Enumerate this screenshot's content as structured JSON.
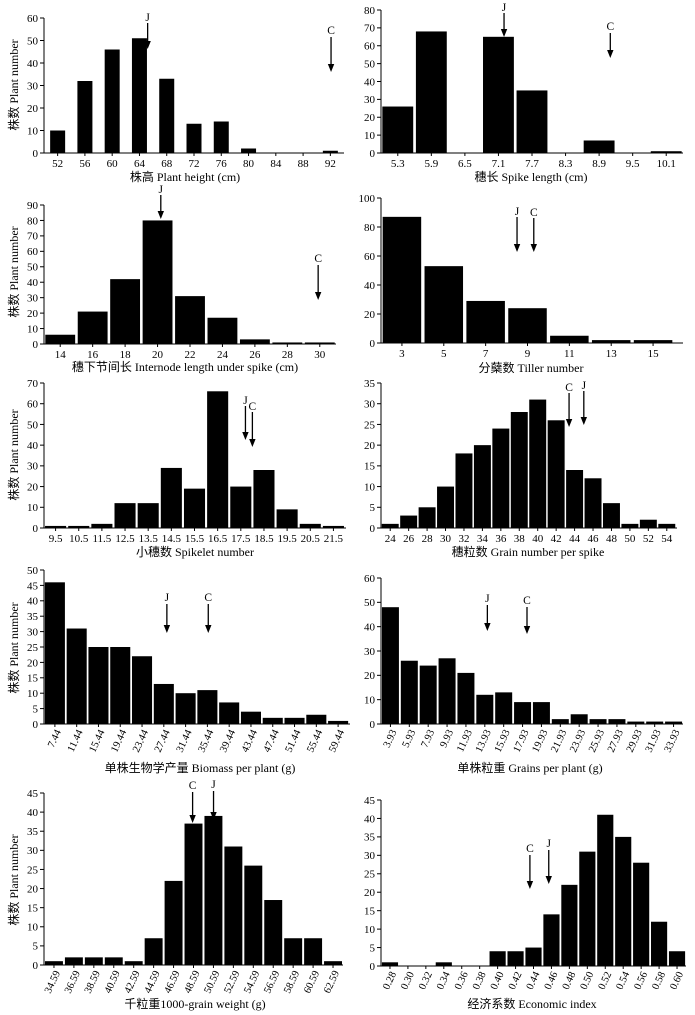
{
  "chart_data": [
    {
      "type": "bar",
      "xlabel": "株高 Plant height (cm)",
      "ylabel": "株数 Plant number",
      "categories": [
        "52",
        "56",
        "60",
        "64",
        "68",
        "72",
        "76",
        "80",
        "84",
        "88",
        "92"
      ],
      "values": [
        10,
        32,
        46,
        51,
        33,
        13,
        14,
        2,
        0,
        0,
        1
      ],
      "ylim": [
        0,
        60
      ],
      "yticks": [
        0,
        10,
        20,
        30,
        40,
        50,
        60
      ],
      "markers": [
        {
          "label": "J",
          "x": 65.2
        },
        {
          "label": "C",
          "x": 92.1
        }
      ]
    },
    {
      "type": "bar",
      "xlabel": "穗长 Spike length (cm)",
      "categories": [
        "5.3",
        "5.9",
        "6.5",
        "7.1",
        "7.7",
        "8.3",
        "8.9",
        "9.5",
        "10.1"
      ],
      "values": [
        26,
        68,
        0,
        65,
        35,
        0,
        7,
        0,
        1
      ],
      "ylim": [
        0,
        80
      ],
      "yticks": [
        0,
        10,
        20,
        30,
        40,
        50,
        60,
        70,
        80
      ],
      "markers": [
        {
          "label": "J",
          "x": 7.2
        },
        {
          "label": "C",
          "x": 9.1
        }
      ]
    },
    {
      "type": "bar",
      "xlabel": "穗下节间长 Internode length under spike (cm)",
      "ylabel": "株数 Plant number",
      "categories": [
        "14",
        "16",
        "18",
        "20",
        "22",
        "24",
        "26",
        "28",
        "30"
      ],
      "values": [
        6,
        21,
        42,
        80,
        31,
        17,
        3,
        1,
        1
      ],
      "ylim": [
        0,
        90
      ],
      "yticks": [
        0,
        10,
        20,
        30,
        40,
        50,
        60,
        70,
        80,
        90
      ],
      "markers": [
        {
          "label": "J",
          "x": 20.2
        },
        {
          "label": "C",
          "x": 29.9
        }
      ]
    },
    {
      "type": "bar",
      "xlabel": "分蘖数 Tiller number",
      "categories": [
        "3",
        "5",
        "7",
        "9",
        "11",
        "13",
        "15"
      ],
      "values": [
        87,
        53,
        29,
        24,
        5,
        2,
        2
      ],
      "ylim": [
        0,
        100
      ],
      "yticks": [
        0,
        20,
        40,
        60,
        80,
        100
      ],
      "markers": [
        {
          "label": "J",
          "x": 8.5
        },
        {
          "label": "C",
          "x": 9.3
        }
      ]
    },
    {
      "type": "bar",
      "xlabel": "小穗数 Spikelet number",
      "ylabel": "株数 Plant number",
      "categories": [
        "9.5",
        "10.5",
        "11.5",
        "12.5",
        "13.5",
        "14.5",
        "15.5",
        "16.5",
        "17.5",
        "18.5",
        "19.5",
        "20.5",
        "21.5"
      ],
      "values": [
        1,
        1,
        2,
        12,
        12,
        29,
        19,
        66,
        20,
        28,
        9,
        2,
        1
      ],
      "ylim": [
        0,
        70
      ],
      "yticks": [
        0,
        10,
        20,
        30,
        40,
        50,
        60,
        70
      ],
      "markers": [
        {
          "label": "J",
          "x": 17.7
        },
        {
          "label": "C",
          "x": 18.0
        }
      ]
    },
    {
      "type": "bar",
      "xlabel": "穗粒数 Grain number per spike",
      "categories": [
        "24",
        "26",
        "28",
        "30",
        "32",
        "34",
        "36",
        "38",
        "40",
        "42",
        "44",
        "46",
        "48",
        "50",
        "52",
        "54"
      ],
      "values": [
        1,
        3,
        5,
        10,
        18,
        20,
        24,
        28,
        31,
        26,
        14,
        12,
        6,
        1,
        2,
        1
      ],
      "ylim": [
        0,
        35
      ],
      "yticks": [
        0,
        5,
        10,
        15,
        20,
        25,
        30,
        35
      ],
      "markers": [
        {
          "label": "C",
          "x": 43.4
        },
        {
          "label": "J",
          "x": 45.0
        }
      ]
    },
    {
      "type": "bar",
      "xlabel": "单株生物学产量 Biomass per plant (g)",
      "ylabel": "株数 Plant number",
      "categories": [
        "7.44",
        "11.44",
        "15.44",
        "19.44",
        "23.44",
        "27.44",
        "31.44",
        "35.44",
        "39.44",
        "43.44",
        "47.44",
        "51.44",
        "55.44",
        "59.44"
      ],
      "values": [
        46,
        31,
        25,
        25,
        22,
        13,
        10,
        11,
        7,
        4,
        2,
        2,
        3,
        1
      ],
      "ylim": [
        0,
        50
      ],
      "yticks": [
        0,
        5,
        10,
        15,
        20,
        25,
        30,
        35,
        40,
        45,
        50
      ],
      "markers": [
        {
          "label": "J",
          "x": 28.0
        },
        {
          "label": "C",
          "x": 35.6
        }
      ]
    },
    {
      "type": "bar",
      "xlabel": "单株粒重 Grains per plant (g)",
      "categories": [
        "3.93",
        "5.93",
        "7.93",
        "9.93",
        "11.93",
        "13.93",
        "15.93",
        "17.93",
        "19.93",
        "21.93",
        "23.93",
        "25.93",
        "27.93",
        "29.93",
        "31.93",
        "33.93"
      ],
      "values": [
        48,
        26,
        24,
        27,
        21,
        12,
        13,
        9,
        9,
        2,
        4,
        2,
        2,
        1,
        1,
        1
      ],
      "ylim": [
        0,
        60
      ],
      "yticks": [
        0,
        10,
        20,
        30,
        40,
        50,
        60
      ],
      "markers": [
        {
          "label": "J",
          "x": 14.2
        },
        {
          "label": "C",
          "x": 18.4
        }
      ]
    },
    {
      "type": "bar",
      "xlabel": "千粒重1000-grain weight (g)",
      "ylabel": "株数 Plant number",
      "categories": [
        "34.59",
        "36.59",
        "38.59",
        "40.59",
        "42.59",
        "44.59",
        "46.59",
        "48.59",
        "50.59",
        "52.59",
        "54.59",
        "56.59",
        "58.59",
        "60.59",
        "62.59"
      ],
      "values": [
        1,
        2,
        2,
        2,
        1,
        7,
        22,
        37,
        39,
        31,
        26,
        17,
        7,
        7,
        1
      ],
      "ylim": [
        0,
        45
      ],
      "yticks": [
        0,
        5,
        10,
        15,
        20,
        25,
        30,
        35,
        40,
        45
      ],
      "markers": [
        {
          "label": "C",
          "x": 48.5
        },
        {
          "label": "J",
          "x": 50.6
        }
      ]
    },
    {
      "type": "bar",
      "xlabel": "经济系数 Economic index",
      "categories": [
        "0.28",
        "0.30",
        "0.32",
        "0.34",
        "0.36",
        "0.38",
        "0.40",
        "0.42",
        "0.44",
        "0.46",
        "0.48",
        "0.50",
        "0.52",
        "0.54",
        "0.56",
        "0.58",
        "0.60"
      ],
      "values": [
        1,
        0,
        0,
        1,
        0,
        0,
        4,
        4,
        5,
        14,
        22,
        31,
        41,
        35,
        28,
        12,
        4
      ],
      "ylim": [
        0,
        45
      ],
      "yticks": [
        0,
        5,
        10,
        15,
        20,
        25,
        30,
        35,
        40,
        45
      ],
      "markers": [
        {
          "label": "C",
          "x": 0.436
        },
        {
          "label": "J",
          "x": 0.457
        }
      ]
    }
  ]
}
